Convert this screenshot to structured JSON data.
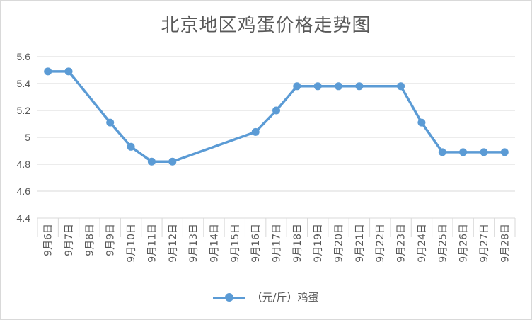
{
  "chart_data": {
    "type": "line",
    "title": "北京地区鸡蛋价格走势图",
    "xlabel": "",
    "ylabel": "",
    "ylim": [
      4.4,
      5.6
    ],
    "yticks": [
      "4.4",
      "4.6",
      "4.8",
      "5",
      "5.2",
      "5.4",
      "5.6"
    ],
    "grid": true,
    "legend_position": "bottom",
    "categories": [
      "9月6日",
      "9月7日",
      "9月8日",
      "9月9日",
      "9月10日",
      "9月11日",
      "9月12日",
      "9月13日",
      "9月14日",
      "9月15日",
      "9月16日",
      "9月17日",
      "9月18日",
      "9月19日",
      "9月20日",
      "9月21日",
      "9月22日",
      "9月23日",
      "9月24日",
      "9月25日",
      "9月26日",
      "9月27日",
      "9月28日"
    ],
    "series": [
      {
        "name": "（元/斤）鸡蛋",
        "color": "#5b9bd5",
        "values": [
          5.49,
          5.49,
          null,
          5.11,
          4.93,
          4.82,
          4.82,
          null,
          null,
          null,
          5.04,
          5.2,
          5.38,
          5.38,
          5.38,
          5.38,
          null,
          5.38,
          5.11,
          4.89,
          4.89,
          4.89,
          4.89
        ]
      }
    ]
  }
}
